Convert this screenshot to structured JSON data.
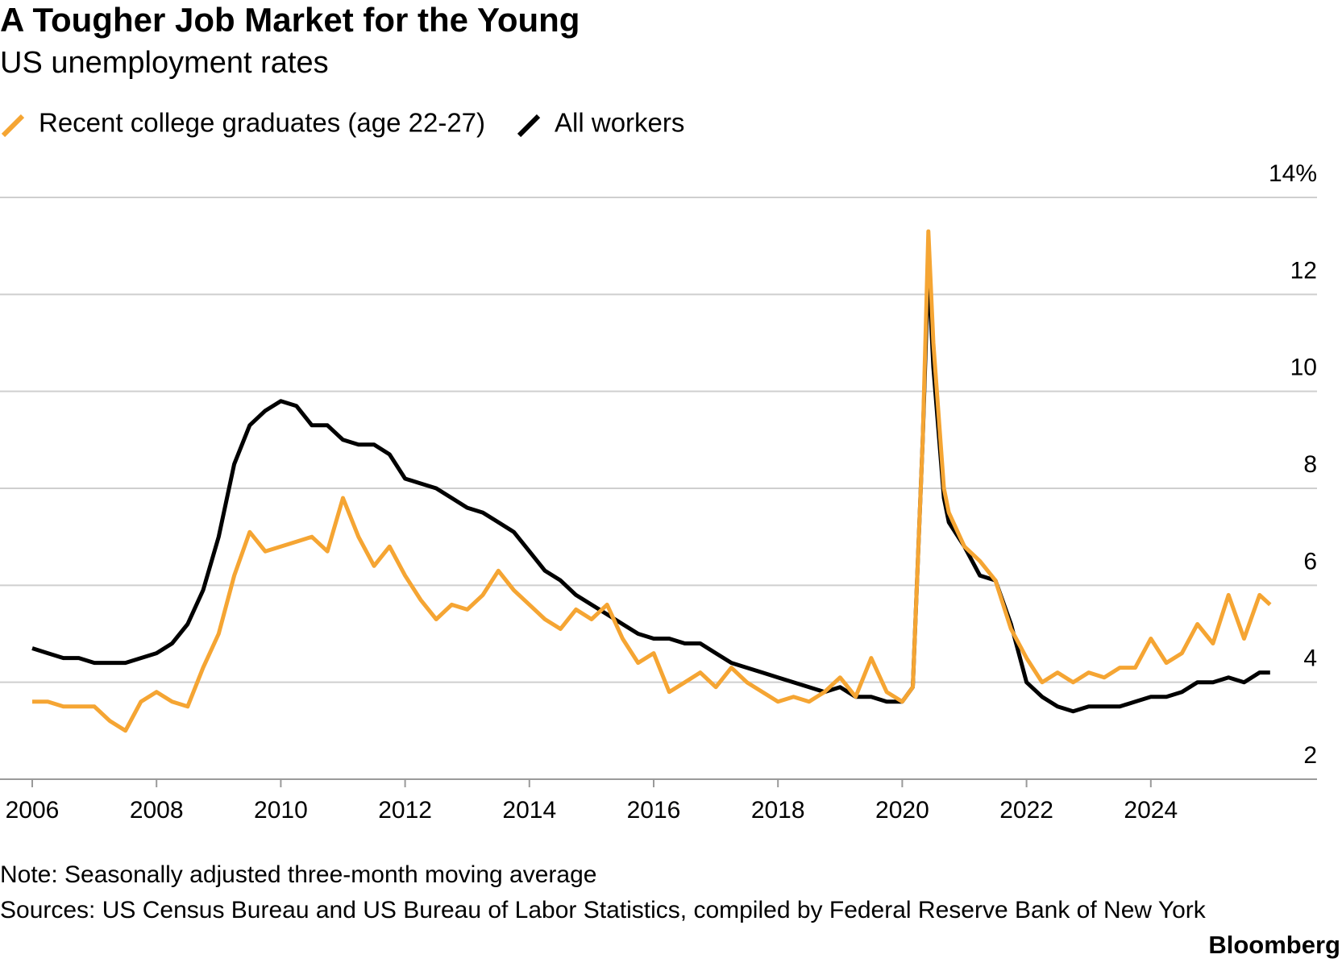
{
  "chart_data": {
    "type": "line",
    "title": "A Tougher Job Market for the Young",
    "subtitle": "US unemployment rates",
    "note": "Note: Seasonally adjusted three-month moving average",
    "source": "Sources: US Census Bureau and US Bureau of Labor Statistics, compiled by Federal Reserve Bank of New York",
    "credit": "Bloomberg",
    "x": [
      2006,
      2006.25,
      2006.5,
      2006.75,
      2007,
      2007.25,
      2007.5,
      2007.75,
      2008,
      2008.25,
      2008.5,
      2008.75,
      2009,
      2009.25,
      2009.5,
      2009.75,
      2010,
      2010.25,
      2010.5,
      2010.75,
      2011,
      2011.25,
      2011.5,
      2011.75,
      2012,
      2012.25,
      2012.5,
      2012.75,
      2013,
      2013.25,
      2013.5,
      2013.75,
      2014,
      2014.25,
      2014.5,
      2014.75,
      2015,
      2015.25,
      2015.5,
      2015.75,
      2016,
      2016.25,
      2016.5,
      2016.75,
      2017,
      2017.25,
      2017.5,
      2017.75,
      2018,
      2018.25,
      2018.5,
      2018.75,
      2019,
      2019.25,
      2019.5,
      2019.75,
      2020,
      2020.17,
      2020.33,
      2020.42,
      2020.5,
      2020.67,
      2020.75,
      2021,
      2021.25,
      2021.5,
      2021.75,
      2022,
      2022.25,
      2022.5,
      2022.75,
      2023,
      2023.25,
      2023.5,
      2023.75,
      2024,
      2024.25,
      2024.5,
      2024.75,
      2025,
      2025.25,
      2025.5,
      2025.75,
      2025.92
    ],
    "series": [
      {
        "name": "Recent college graduates (age 22-27)",
        "color": "#f5a533",
        "values": [
          3.6,
          3.6,
          3.5,
          3.5,
          3.5,
          3.2,
          3.0,
          3.6,
          3.8,
          3.6,
          3.5,
          4.3,
          5.0,
          6.2,
          7.1,
          6.7,
          6.8,
          6.9,
          7.0,
          6.7,
          7.8,
          7.0,
          6.4,
          6.8,
          6.2,
          5.7,
          5.3,
          5.6,
          5.5,
          5.8,
          6.3,
          5.9,
          5.6,
          5.3,
          5.1,
          5.5,
          5.3,
          5.6,
          4.9,
          4.4,
          4.6,
          3.8,
          4.0,
          4.2,
          3.9,
          4.3,
          4.0,
          3.8,
          3.6,
          3.7,
          3.6,
          3.8,
          4.1,
          3.7,
          4.5,
          3.8,
          3.6,
          3.9,
          9.0,
          13.3,
          11.0,
          8.0,
          7.5,
          6.8,
          6.5,
          6.1,
          5.1,
          4.5,
          4.0,
          4.2,
          4.0,
          4.2,
          4.1,
          4.3,
          4.3,
          4.9,
          4.4,
          4.6,
          5.2,
          4.8,
          5.8,
          4.9,
          5.8,
          5.6
        ]
      },
      {
        "name": "All workers",
        "color": "#000000",
        "values": [
          4.7,
          4.6,
          4.5,
          4.5,
          4.4,
          4.4,
          4.4,
          4.5,
          4.6,
          4.8,
          5.2,
          5.9,
          7.0,
          8.5,
          9.3,
          9.6,
          9.8,
          9.7,
          9.3,
          9.3,
          9.0,
          8.9,
          8.9,
          8.7,
          8.2,
          8.1,
          8.0,
          7.8,
          7.6,
          7.5,
          7.3,
          7.1,
          6.7,
          6.3,
          6.1,
          5.8,
          5.6,
          5.4,
          5.2,
          5.0,
          4.9,
          4.9,
          4.8,
          4.8,
          4.6,
          4.4,
          4.3,
          4.2,
          4.1,
          4.0,
          3.9,
          3.8,
          3.9,
          3.7,
          3.7,
          3.6,
          3.6,
          3.9,
          9.0,
          12.6,
          10.5,
          7.8,
          7.3,
          6.8,
          6.2,
          6.1,
          5.2,
          4.0,
          3.7,
          3.5,
          3.4,
          3.5,
          3.5,
          3.5,
          3.6,
          3.7,
          3.7,
          3.8,
          4.0,
          4.0,
          4.1,
          4.0,
          4.2,
          4.2
        ]
      }
    ],
    "xlim": [
      2006,
      2026
    ],
    "xticks": [
      2006,
      2008,
      2010,
      2012,
      2014,
      2016,
      2018,
      2020,
      2022,
      2024
    ],
    "ylim": [
      2,
      14
    ],
    "yticks": [
      2,
      4,
      6,
      8,
      10,
      {
        "value": 14,
        "label": "14%"
      },
      12
    ],
    "grid": true
  }
}
